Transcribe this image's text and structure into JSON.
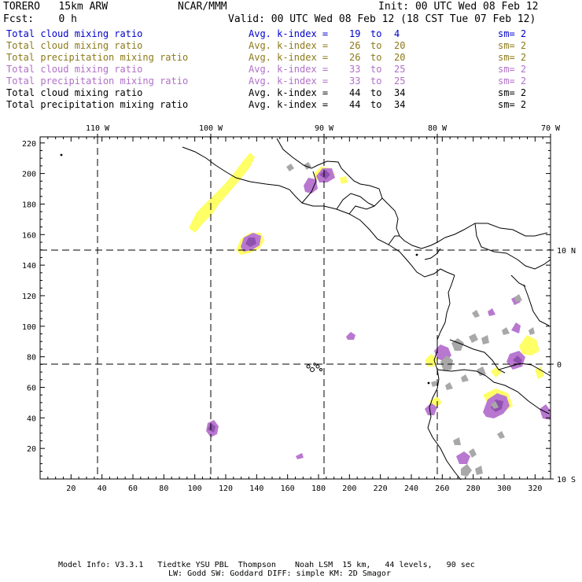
{
  "header": {
    "model": "TORERO   15km ARW",
    "center": "NCAR/MMM",
    "init": "Init: 00 UTC Wed 08 Feb 12",
    "fcst": "Fcst:    0 h",
    "valid": "Valid: 00 UTC Wed 08 Feb 12 (18 CST Tue 07 Feb 12)"
  },
  "legend": [
    {
      "field": "Total cloud mixing ratio",
      "kindex_label": "Avg. k-index =",
      "from": "19",
      "to_word": "to",
      "to": "4",
      "sm": "sm= 2",
      "color": "#0000cc"
    },
    {
      "field": "Total cloud mixing ratio",
      "kindex_label": "Avg. k-index =",
      "from": "26",
      "to_word": "to",
      "to": "20",
      "sm": "sm= 2",
      "color": "#8c7a1a"
    },
    {
      "field": "Total precipitation mixing ratio",
      "kindex_label": "Avg. k-index =",
      "from": "26",
      "to_word": "to",
      "to": "20",
      "sm": "sm= 2",
      "color": "#8c7a1a"
    },
    {
      "field": "Total cloud mixing ratio",
      "kindex_label": "Avg. k-index =",
      "from": "33",
      "to_word": "to",
      "to": "25",
      "sm": "sm= 2",
      "color": "#b070c8"
    },
    {
      "field": "Total precipitation mixing ratio",
      "kindex_label": "Avg. k-index =",
      "from": "33",
      "to_word": "to",
      "to": "25",
      "sm": "sm= 2",
      "color": "#b070c8"
    },
    {
      "field": "Total cloud mixing ratio",
      "kindex_label": "Avg. k-index =",
      "from": "44",
      "to_word": "to",
      "to": "34",
      "sm": "sm= 2",
      "color": "#000000"
    },
    {
      "field": "Total precipitation mixing ratio",
      "kindex_label": "Avg. k-index =",
      "from": "44",
      "to_word": "to",
      "to": "34",
      "sm": "sm= 2",
      "color": "#000000"
    }
  ],
  "map": {
    "x_ticks": [
      "20",
      "40",
      "60",
      "80",
      "100",
      "120",
      "140",
      "160",
      "180",
      "200",
      "220",
      "240",
      "260",
      "280",
      "300",
      "320"
    ],
    "y_ticks": [
      "20",
      "40",
      "60",
      "80",
      "100",
      "120",
      "140",
      "160",
      "180",
      "200",
      "220"
    ],
    "lon_labels": [
      "110 W",
      "100 W",
      "90 W",
      "80 W",
      "70 W"
    ],
    "lat_labels": [
      "10 N",
      "0",
      "10 S"
    ],
    "colors": {
      "yellow": "#ffff66",
      "purple": "#b878d0",
      "purple_dark": "#9050b0",
      "gray": "#a8a8a8"
    }
  },
  "footer": {
    "line1": "Model Info: V3.3.1   Tiedtke YSU PBL  Thompson    Noah LSM  15 km,   44 levels,   90 sec",
    "line2": "LW: Godd SW: Goddard DIFF: simple KM: 2D Smagor"
  }
}
